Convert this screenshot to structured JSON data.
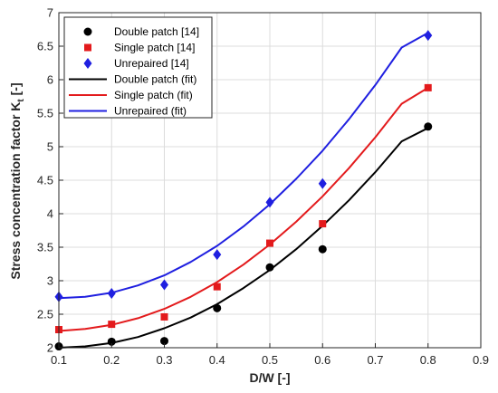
{
  "chart_data": {
    "type": "scatter",
    "xlabel": "D/W [-]",
    "ylabel": "Stress concentration factor K",
    "ylabel_subscript": "t",
    "ylabel_suffix": " [-]",
    "xlim": [
      0.1,
      0.9
    ],
    "ylim": [
      2,
      7
    ],
    "xticks": [
      0.1,
      0.2,
      0.3,
      0.4,
      0.5,
      0.6,
      0.7,
      0.8,
      0.9
    ],
    "xtick_labels": [
      "0.1",
      "0.2",
      "0.3",
      "0.4",
      "0.5",
      "0.6",
      "0.7",
      "0.8",
      "0.9"
    ],
    "yticks": [
      2,
      2.5,
      3,
      3.5,
      4,
      4.5,
      5,
      5.5,
      6,
      6.5,
      7
    ],
    "ytick_labels": [
      "2",
      "2.5",
      "3",
      "3.5",
      "4",
      "4.5",
      "5",
      "5.5",
      "6",
      "6.5",
      "7"
    ],
    "grid": true,
    "legend_position": "top-left",
    "series": [
      {
        "name": "Double patch [14]",
        "kind": "points",
        "marker": "circle",
        "color": "#000000",
        "x": [
          0.1,
          0.2,
          0.3,
          0.4,
          0.5,
          0.6,
          0.8
        ],
        "y": [
          2.02,
          2.09,
          2.1,
          2.59,
          3.2,
          3.47,
          5.3
        ]
      },
      {
        "name": "Single patch [14]",
        "kind": "points",
        "marker": "square",
        "color": "#e31a1c",
        "x": [
          0.1,
          0.2,
          0.3,
          0.4,
          0.5,
          0.6,
          0.8
        ],
        "y": [
          2.27,
          2.35,
          2.46,
          2.91,
          3.56,
          3.85,
          5.88
        ]
      },
      {
        "name": "Unrepaired [14]",
        "kind": "points",
        "marker": "diamond",
        "color": "#1f1fe0",
        "x": [
          0.1,
          0.2,
          0.3,
          0.4,
          0.5,
          0.6,
          0.8
        ],
        "y": [
          2.76,
          2.81,
          2.94,
          3.39,
          4.17,
          4.45,
          6.66
        ]
      },
      {
        "name": "Double patch (fit)",
        "kind": "line",
        "color": "#000000",
        "x": [
          0.1,
          0.15,
          0.2,
          0.25,
          0.3,
          0.35,
          0.4,
          0.45,
          0.5,
          0.55,
          0.6,
          0.65,
          0.7,
          0.75,
          0.8
        ],
        "y": [
          2.0,
          2.02,
          2.07,
          2.16,
          2.29,
          2.45,
          2.65,
          2.89,
          3.16,
          3.47,
          3.82,
          4.2,
          4.62,
          5.08,
          5.28
        ]
      },
      {
        "name": "Single patch (fit)",
        "kind": "line",
        "color": "#e31a1c",
        "x": [
          0.1,
          0.15,
          0.2,
          0.25,
          0.3,
          0.35,
          0.4,
          0.45,
          0.5,
          0.55,
          0.6,
          0.65,
          0.7,
          0.75,
          0.8
        ],
        "y": [
          2.25,
          2.28,
          2.34,
          2.44,
          2.58,
          2.76,
          2.98,
          3.24,
          3.54,
          3.88,
          4.26,
          4.68,
          5.14,
          5.64,
          5.88
        ]
      },
      {
        "name": "Unrepaired (fit)",
        "kind": "line",
        "color": "#1f1fe0",
        "x": [
          0.1,
          0.15,
          0.2,
          0.25,
          0.3,
          0.35,
          0.4,
          0.45,
          0.5,
          0.55,
          0.6,
          0.65,
          0.7,
          0.75,
          0.8
        ],
        "y": [
          2.74,
          2.76,
          2.82,
          2.93,
          3.08,
          3.28,
          3.52,
          3.81,
          4.14,
          4.52,
          4.94,
          5.41,
          5.92,
          6.48,
          6.7
        ]
      }
    ]
  }
}
